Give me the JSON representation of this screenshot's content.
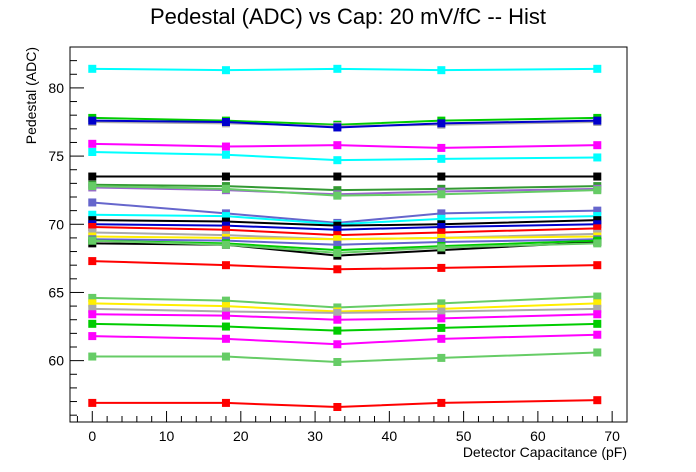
{
  "chart_data": {
    "type": "line",
    "title": "Pedestal (ADC) vs Cap: 20 mV/fC -- Hist",
    "xlabel": "Detector Capacitance (pF)",
    "ylabel": "Pedestal (ADC)",
    "xlim": [
      -3,
      72
    ],
    "ylim": [
      55.5,
      83
    ],
    "x": [
      0,
      18,
      33,
      47,
      68
    ],
    "x_ticks": [
      0,
      10,
      20,
      30,
      40,
      50,
      60,
      70
    ],
    "y_ticks": [
      60,
      65,
      70,
      75,
      80
    ],
    "grid": false,
    "legend": "none",
    "series": [
      {
        "color": "#00ffff",
        "values": [
          81.4,
          81.3,
          81.4,
          81.3,
          81.4
        ]
      },
      {
        "color": "#00cc00",
        "values": [
          77.8,
          77.6,
          77.3,
          77.6,
          77.8
        ]
      },
      {
        "color": "#aaaaaa",
        "values": [
          77.5,
          77.4,
          77.2,
          77.3,
          77.5
        ]
      },
      {
        "color": "#0000cc",
        "values": [
          77.6,
          77.5,
          77.1,
          77.4,
          77.6
        ]
      },
      {
        "color": "#ff00ff",
        "values": [
          75.9,
          75.7,
          75.8,
          75.6,
          75.8
        ]
      },
      {
        "color": "#00ffff",
        "values": [
          75.3,
          75.1,
          74.7,
          74.8,
          74.9
        ]
      },
      {
        "color": "#000000",
        "values": [
          73.5,
          73.5,
          73.5,
          73.5,
          73.5
        ]
      },
      {
        "color": "#339933",
        "values": [
          72.9,
          72.8,
          72.5,
          72.6,
          72.8
        ]
      },
      {
        "color": "#9966cc",
        "values": [
          72.7,
          72.5,
          72.2,
          72.4,
          72.6
        ]
      },
      {
        "color": "#66cc66",
        "values": [
          72.8,
          72.6,
          72.1,
          72.2,
          72.5
        ]
      },
      {
        "color": "#6666cc",
        "values": [
          71.6,
          70.8,
          70.1,
          70.8,
          71.0
        ]
      },
      {
        "color": "#00ffff",
        "values": [
          70.7,
          70.6,
          70.0,
          70.4,
          70.6
        ]
      },
      {
        "color": "#000000",
        "values": [
          70.3,
          70.2,
          69.9,
          70.0,
          70.3
        ]
      },
      {
        "color": "#0000cc",
        "values": [
          70.0,
          69.9,
          69.6,
          69.8,
          70.0
        ]
      },
      {
        "color": "#ff0000",
        "values": [
          69.8,
          69.6,
          69.2,
          69.4,
          69.7
        ]
      },
      {
        "color": "#aaaaaa",
        "values": [
          69.4,
          69.2,
          68.9,
          69.0,
          69.3
        ]
      },
      {
        "color": "#ffee00",
        "values": [
          69.1,
          69.0,
          68.9,
          69.0,
          69.1
        ]
      },
      {
        "color": "#6666cc",
        "values": [
          68.9,
          68.8,
          68.5,
          68.7,
          68.9
        ]
      },
      {
        "color": "#000000",
        "values": [
          68.6,
          68.5,
          67.7,
          68.1,
          68.7
        ]
      },
      {
        "color": "#00cc00",
        "values": [
          68.8,
          68.6,
          68.1,
          68.4,
          68.8
        ]
      },
      {
        "color": "#66cc66",
        "values": [
          68.8,
          68.5,
          67.9,
          68.3,
          68.6
        ]
      },
      {
        "color": "#ff0000",
        "values": [
          67.3,
          67.0,
          66.7,
          66.8,
          67.0
        ]
      },
      {
        "color": "#66cc66",
        "values": [
          64.6,
          64.4,
          63.9,
          64.2,
          64.7
        ]
      },
      {
        "color": "#ffee00",
        "values": [
          64.2,
          64.0,
          63.6,
          63.8,
          64.2
        ]
      },
      {
        "color": "#aaaaaa",
        "values": [
          63.8,
          63.6,
          63.5,
          63.6,
          63.8
        ]
      },
      {
        "color": "#ff00ff",
        "values": [
          63.4,
          63.3,
          63.0,
          63.1,
          63.4
        ]
      },
      {
        "color": "#00cc00",
        "values": [
          62.7,
          62.5,
          62.2,
          62.4,
          62.7
        ]
      },
      {
        "color": "#ff00ff",
        "values": [
          61.8,
          61.6,
          61.2,
          61.6,
          61.9
        ]
      },
      {
        "color": "#66cc66",
        "values": [
          60.3,
          60.3,
          59.9,
          60.2,
          60.6
        ]
      },
      {
        "color": "#ff0000",
        "values": [
          56.9,
          56.9,
          56.6,
          56.9,
          57.1
        ]
      }
    ]
  }
}
